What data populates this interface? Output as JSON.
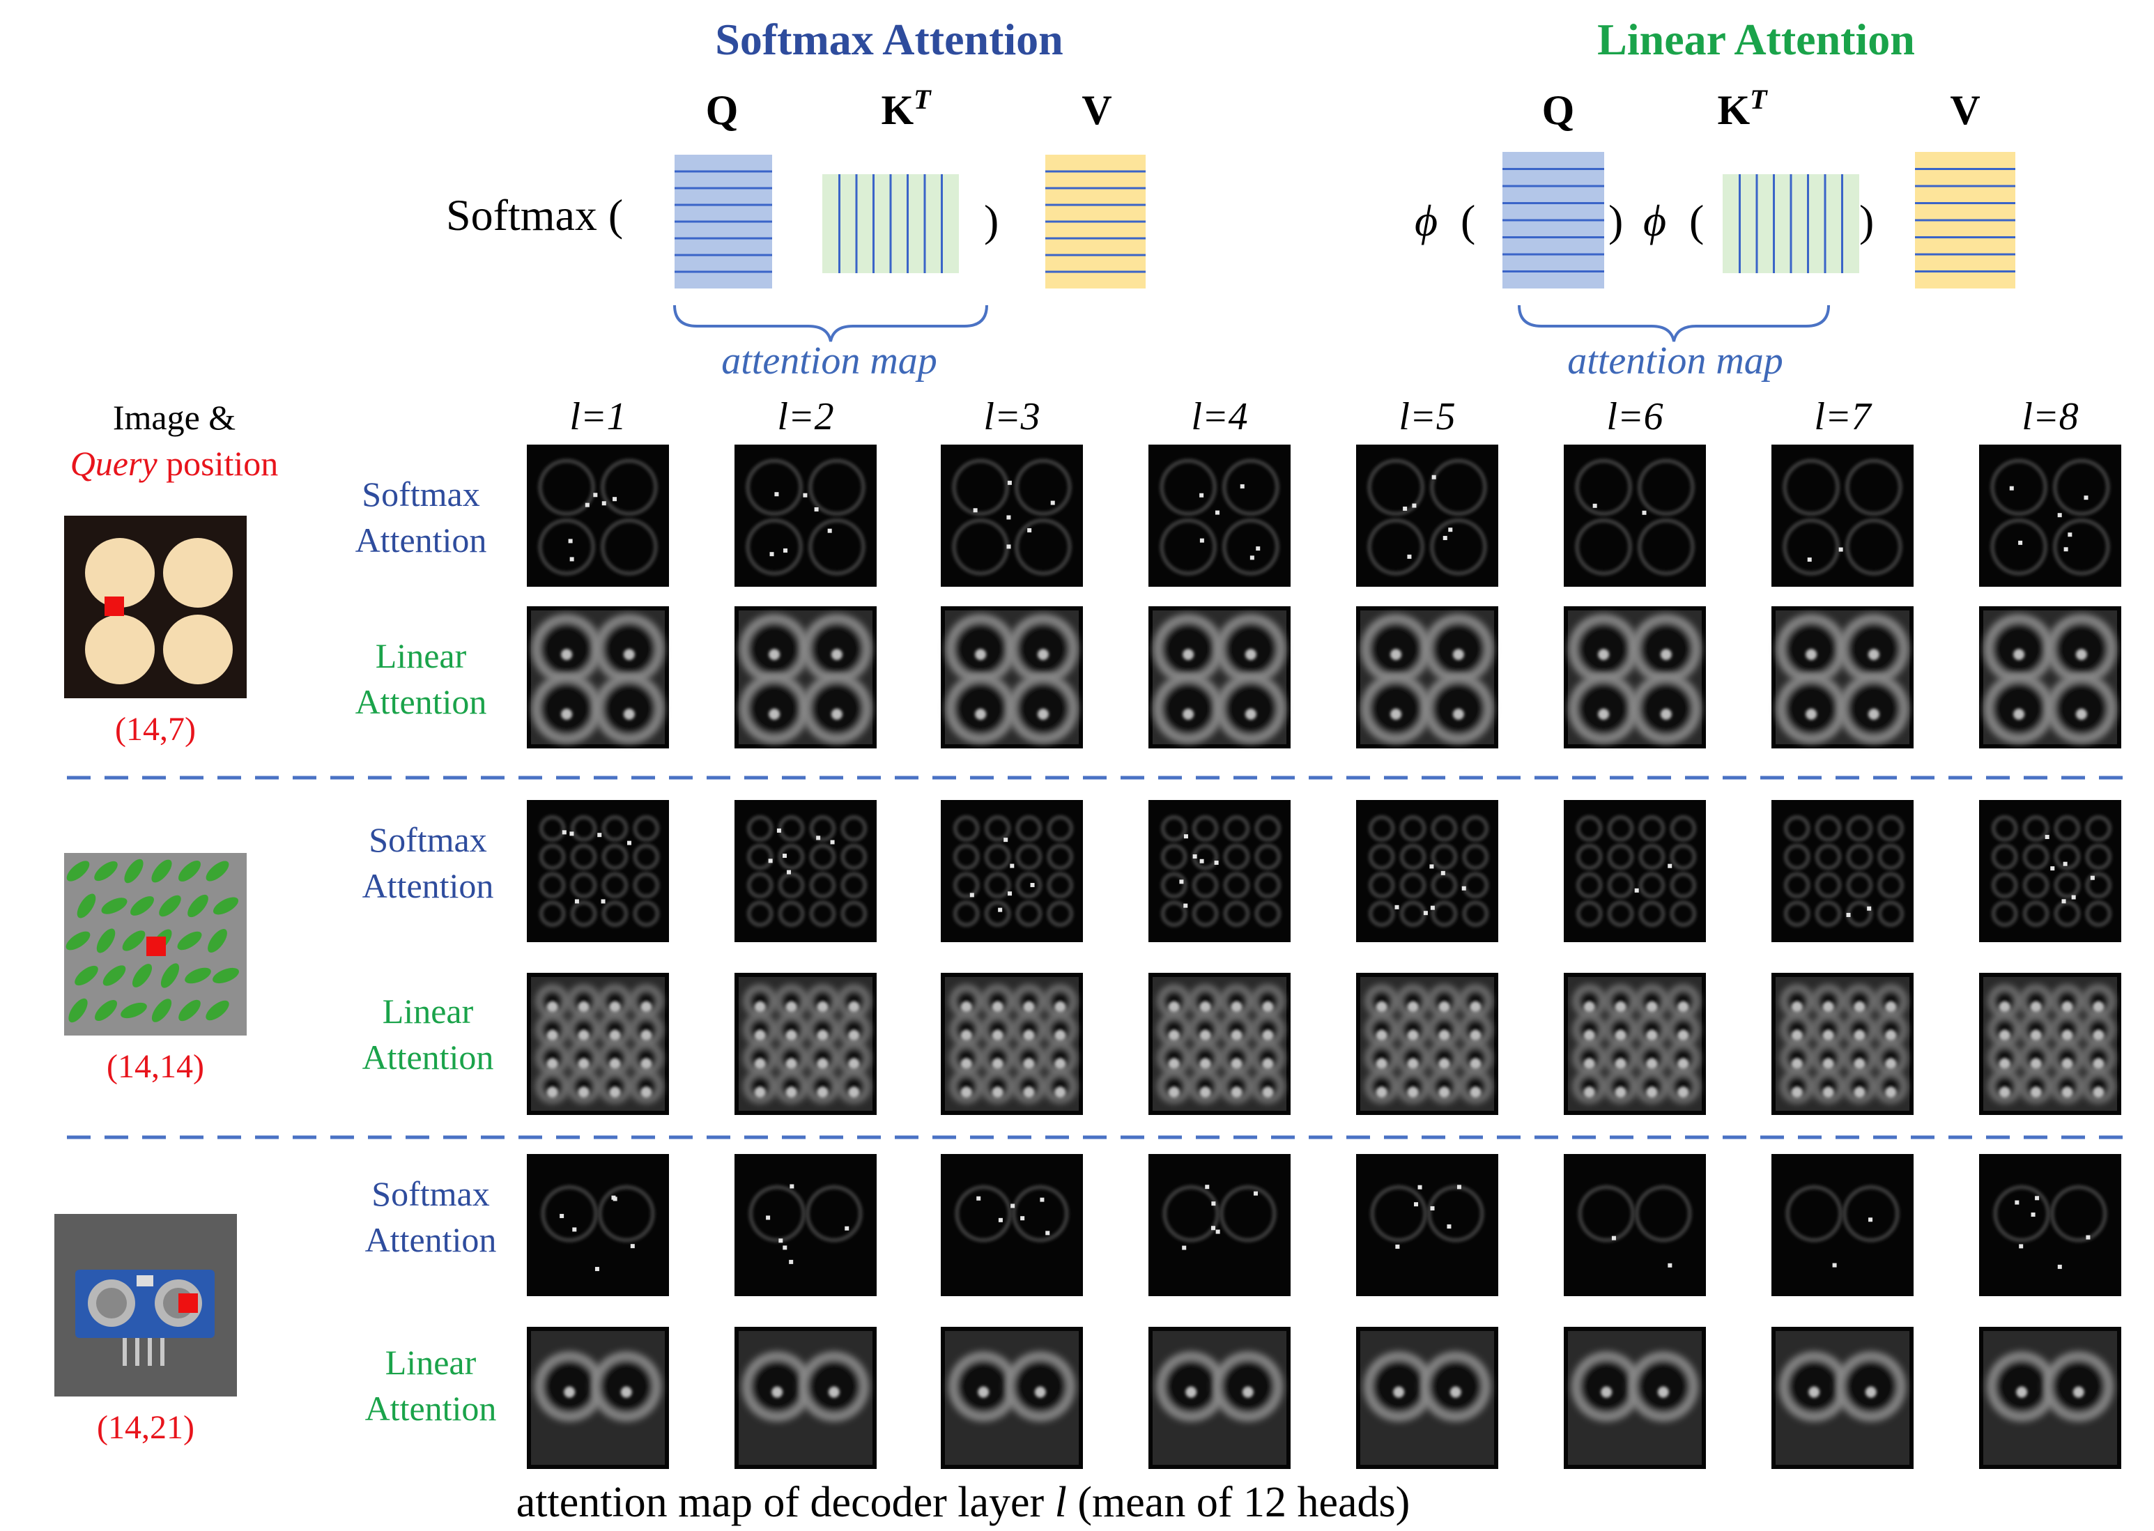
{
  "header": {
    "softmax_title": "Softmax Attention",
    "linear_title": "Linear Attention",
    "q_label": "Q",
    "k_label": "K",
    "k_sup": "T",
    "v_label": "V",
    "softmax_fn": "Softmax (",
    "close_paren": ")",
    "phi": "ϕ",
    "open_paren": "(",
    "attention_map_label": "attention map"
  },
  "left_header": {
    "line1": "Image &",
    "query_word": "Query",
    "position_word": " position"
  },
  "layers": [
    "l=1",
    "l=2",
    "l=3",
    "l=4",
    "l=5",
    "l=6",
    "l=7",
    "l=8"
  ],
  "row_labels": {
    "softmax_line1": "Softmax",
    "softmax_line2": "Attention",
    "linear_line1": "Linear",
    "linear_line2": "Attention"
  },
  "samples": [
    {
      "query": "(14,7)"
    },
    {
      "query": "(14,14)"
    },
    {
      "query": "(14,21)"
    }
  ],
  "caption": {
    "before": "attention map of decoder layer ",
    "var": "l",
    "after": " (mean of 12 heads)"
  },
  "colors": {
    "softmax_title": "#2e4c9d",
    "linear_title": "#1aa34a",
    "softmax_label": "#2e4c9d",
    "linear_label": "#1aa34a",
    "query_text": "#e8141c",
    "brace": "#4a72c4",
    "divider": "#4a72c4",
    "q_fill": "#b3c6e8",
    "k_fill": "#dcefd5",
    "v_fill": "#fde49a",
    "matrix_line": "#3a64c8"
  }
}
